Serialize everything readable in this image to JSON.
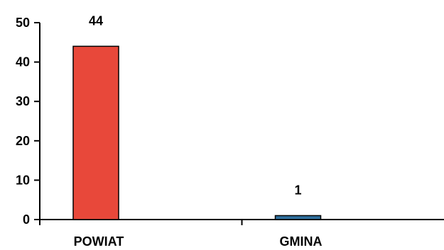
{
  "chart_data": {
    "type": "bar",
    "categories": [
      "POWIAT",
      "GMINA"
    ],
    "values": [
      44,
      1
    ],
    "data_labels": [
      "44",
      "1"
    ],
    "bar_colors": [
      "#e8483a",
      "#2e6f9e"
    ],
    "ylim": [
      0,
      50
    ],
    "yticks": [
      "0",
      "10",
      "20",
      "30",
      "40",
      "50"
    ],
    "title": "",
    "xlabel": "",
    "ylabel": "",
    "grid": false,
    "legend": "none"
  }
}
